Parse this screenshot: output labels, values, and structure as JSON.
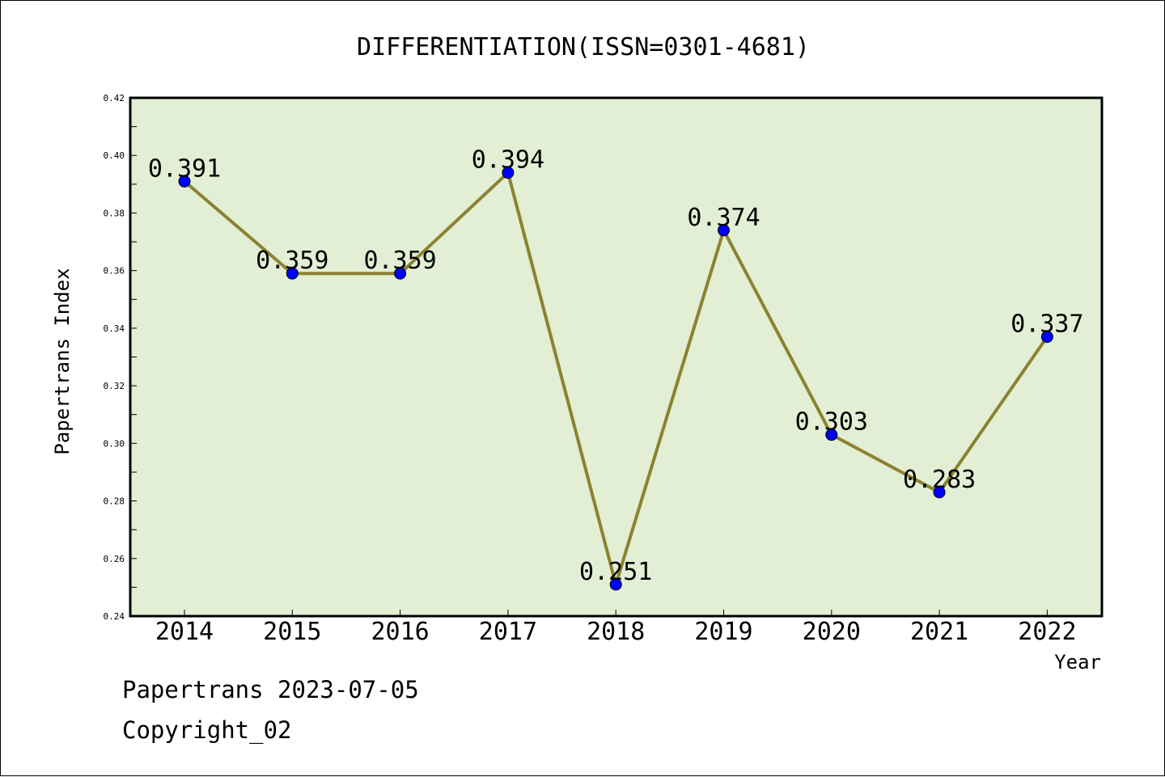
{
  "colors": {
    "plot_background": "#e2efd4",
    "line": "#8b8232",
    "marker": "#0000ff",
    "text": "#000000"
  },
  "footer": {
    "line1": "Papertrans 2023-07-05",
    "line2": "Copyright_02"
  },
  "chart_data": {
    "type": "line",
    "title": "DIFFERENTIATION(ISSN=0301-4681)",
    "xlabel": "Year",
    "ylabel": "Papertrans Index",
    "categories": [
      "2014",
      "2015",
      "2016",
      "2017",
      "2018",
      "2019",
      "2020",
      "2021",
      "2022"
    ],
    "values": [
      0.391,
      0.359,
      0.359,
      0.394,
      0.251,
      0.374,
      0.303,
      0.283,
      0.337
    ],
    "data_labels": [
      "0.391",
      "0.359",
      "0.359",
      "0.394",
      "0.251",
      "0.374",
      "0.303",
      "0.283",
      "0.337"
    ],
    "ylim": [
      0.24,
      0.42
    ],
    "yticks": [
      "0.24",
      "0.26",
      "0.28",
      "0.30",
      "0.32",
      "0.34",
      "0.36",
      "0.38",
      "0.40",
      "0.42"
    ],
    "grid": false,
    "legend": "none"
  }
}
